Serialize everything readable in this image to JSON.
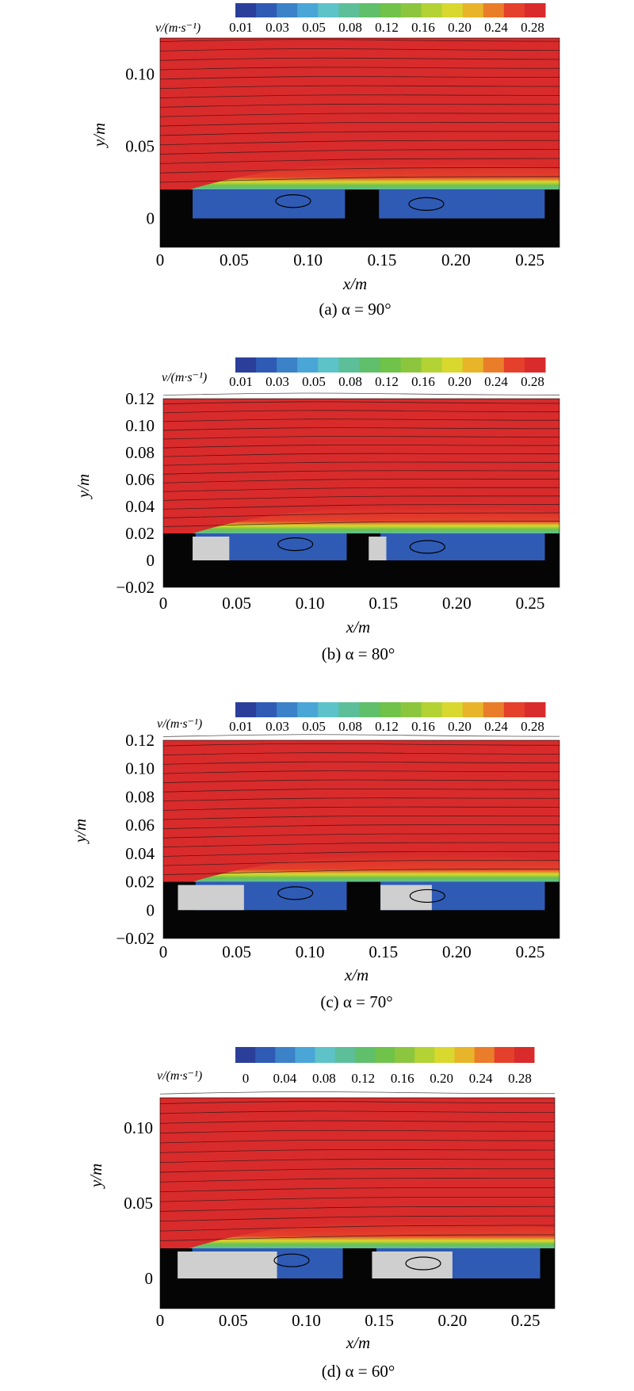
{
  "colorscale": {
    "colors": [
      "#2b3f9a",
      "#2f5bb5",
      "#3b82c8",
      "#4aa6d6",
      "#5dc3c8",
      "#5cbf9a",
      "#5fbf6a",
      "#6fc24a",
      "#8cc63f",
      "#b3d234",
      "#d8d82e",
      "#e8b52a",
      "#ea7d2a",
      "#e5402b",
      "#d92b2b"
    ]
  },
  "panels": [
    {
      "id": "a",
      "caption": "(a) α = 90°",
      "colorbar_label": "v/(m·s⁻¹)",
      "colorbar_ticks": [
        "0.01",
        "0.03",
        "0.05",
        "0.08",
        "0.12",
        "0.16",
        "0.20",
        "0.24",
        "0.28"
      ],
      "ylabel": "y/m",
      "xlabel": "x/m",
      "yticks": [
        "0.10",
        "0.05",
        "0"
      ],
      "xticks": [
        "0",
        "0.05",
        "0.10",
        "0.15",
        "0.20",
        "0.25"
      ],
      "plates": []
    },
    {
      "id": "b",
      "caption": "(b) α = 80°",
      "colorbar_label": "v/(m·s⁻¹)",
      "colorbar_ticks": [
        "0.01",
        "0.03",
        "0.05",
        "0.08",
        "0.12",
        "0.16",
        "0.20",
        "0.24",
        "0.28"
      ],
      "ylabel": "y/m",
      "xlabel": "x/m",
      "yticks": [
        "0.12",
        "0.10",
        "0.08",
        "0.06",
        "0.04",
        "0.02",
        "0",
        "−0.02"
      ],
      "xticks": [
        "0",
        "0.05",
        "0.10",
        "0.15",
        "0.20",
        "0.25"
      ],
      "plates": [
        [
          0.02,
          0.045
        ],
        [
          0.14,
          0.152
        ]
      ]
    },
    {
      "id": "c",
      "caption": "(c) α = 70°",
      "colorbar_label": "v/(m·s⁻¹)",
      "colorbar_ticks": [
        "0.01",
        "0.03",
        "0.05",
        "0.08",
        "0.12",
        "0.16",
        "0.20",
        "0.24",
        "0.28"
      ],
      "ylabel": "y/m",
      "xlabel": "x/m",
      "yticks": [
        "0.12",
        "0.10",
        "0.08",
        "0.06",
        "0.04",
        "0.02",
        "0",
        "−0.02"
      ],
      "xticks": [
        "0",
        "0.05",
        "0.10",
        "0.15",
        "0.20",
        "0.25"
      ],
      "plates": [
        [
          0.01,
          0.055
        ],
        [
          0.148,
          0.183
        ]
      ]
    },
    {
      "id": "d",
      "caption": "(d) α = 60°",
      "colorbar_label": "v/(m·s⁻¹)",
      "colorbar_ticks": [
        "0",
        "0.04",
        "0.08",
        "0.12",
        "0.16",
        "0.20",
        "0.24",
        "0.28"
      ],
      "ylabel": "y/m",
      "xlabel": "x/m",
      "yticks": [
        "0.10",
        "0.05",
        "0"
      ],
      "xticks": [
        "0",
        "0.05",
        "0.10",
        "0.15",
        "0.20",
        "0.25"
      ],
      "plates": [
        [
          0.012,
          0.08
        ],
        [
          0.145,
          0.2
        ]
      ]
    }
  ],
  "chart_data": [
    {
      "type": "heatmap",
      "xlabel": "x/m",
      "ylabel": "y/m",
      "xlim": [
        0,
        0.27
      ],
      "ylim": [
        -0.02,
        0.12
      ],
      "colorbar_range": [
        0.01,
        0.28
      ],
      "colorbar_label": "v/(m·s⁻¹)",
      "caption": "(a) α = 90°"
    },
    {
      "type": "heatmap",
      "xlabel": "x/m",
      "ylabel": "y/m",
      "xlim": [
        0,
        0.27
      ],
      "ylim": [
        -0.02,
        0.12
      ],
      "colorbar_range": [
        0.01,
        0.28
      ],
      "colorbar_label": "v/(m·s⁻¹)",
      "caption": "(b) α = 80°"
    },
    {
      "type": "heatmap",
      "xlabel": "x/m",
      "ylabel": "y/m",
      "xlim": [
        0,
        0.27
      ],
      "ylim": [
        -0.02,
        0.12
      ],
      "colorbar_range": [
        0.01,
        0.28
      ],
      "colorbar_label": "v/(m·s⁻¹)",
      "caption": "(c) α = 70°"
    },
    {
      "type": "heatmap",
      "xlabel": "x/m",
      "ylabel": "y/m",
      "xlim": [
        0,
        0.27
      ],
      "ylim": [
        -0.02,
        0.12
      ],
      "colorbar_range": [
        0,
        0.28
      ],
      "colorbar_label": "v/(m·s⁻¹)",
      "caption": "(d) α = 60°"
    }
  ]
}
